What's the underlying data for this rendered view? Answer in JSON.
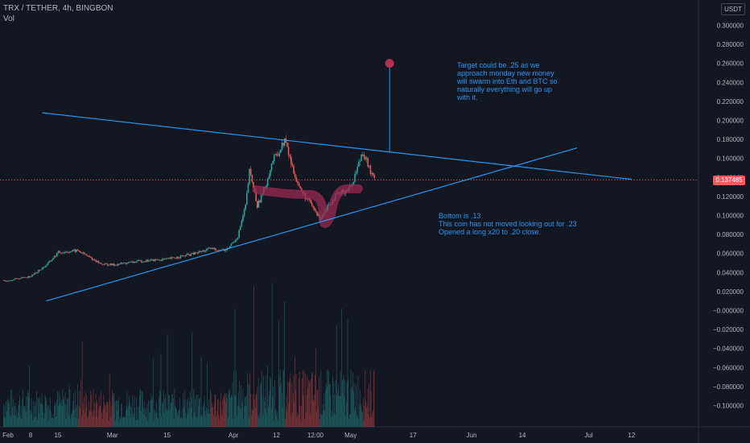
{
  "header": {
    "symbol_line": "TRX / TETHER, 4h, BINGBON",
    "volume_label": "Vol"
  },
  "unit_label": "USDT",
  "current_price_label": "0.137485",
  "annotations": {
    "target_note": [
      "Target could be .25 as we",
      "approach monday new money",
      "will swarm into Eth and BTC so",
      "naturally everything will go up",
      "with it."
    ],
    "bottom_note": [
      "Bottom is .13",
      "This coin has not moved looking out for .23",
      "Opened a long x20 to .20 close."
    ]
  },
  "chart_data": {
    "type": "candlestick",
    "title": "TRX / TETHER, 4h, BINGBON",
    "y_axis": {
      "unit": "USDT",
      "ylim": [
        -0.108,
        0.308
      ],
      "tick_labels": [
        "0.300000",
        "0.280000",
        "0.260000",
        "0.240000",
        "0.220000",
        "0.200000",
        "0.180000",
        "0.160000",
        "0.140000",
        "0.120000",
        "0.100000",
        "0.080000",
        "0.060000",
        "0.040000",
        "0.020000",
        "−0.000000",
        "−0.020000",
        "−0.040000",
        "−0.060000",
        "−0.080000",
        "−0.100000"
      ],
      "tick_values": [
        0.3,
        0.28,
        0.26,
        0.24,
        0.22,
        0.2,
        0.18,
        0.16,
        0.14,
        0.12,
        0.1,
        0.08,
        0.06,
        0.04,
        0.02,
        0.0,
        -0.02,
        -0.04,
        -0.06,
        -0.08,
        -0.1
      ]
    },
    "x_axis": {
      "tick_labels": [
        "Feb",
        "8",
        "15",
        "Mar",
        "15",
        "Apr",
        "12",
        "12:00",
        "May",
        "17",
        "Jun",
        "14",
        "Jul",
        "12"
      ]
    },
    "current_price": 0.137485,
    "price_path": [
      {
        "t": "Feb 1",
        "p": 0.031
      },
      {
        "t": "Feb 8",
        "p": 0.036
      },
      {
        "t": "Feb 12",
        "p": 0.048
      },
      {
        "t": "Feb 15",
        "p": 0.061
      },
      {
        "t": "Feb 20",
        "p": 0.063
      },
      {
        "t": "Feb 26",
        "p": 0.049
      },
      {
        "t": "Mar 1",
        "p": 0.048
      },
      {
        "t": "Mar 8",
        "p": 0.052
      },
      {
        "t": "Mar 15",
        "p": 0.054
      },
      {
        "t": "Mar 22",
        "p": 0.06
      },
      {
        "t": "Mar 26",
        "p": 0.065
      },
      {
        "t": "Mar 30",
        "p": 0.063
      },
      {
        "t": "Apr 2",
        "p": 0.078
      },
      {
        "t": "Apr 4",
        "p": 0.11
      },
      {
        "t": "Apr 5",
        "p": 0.146
      },
      {
        "t": "Apr 6",
        "p": 0.13
      },
      {
        "t": "Apr 7",
        "p": 0.11
      },
      {
        "t": "Apr 9",
        "p": 0.13
      },
      {
        "t": "Apr 11",
        "p": 0.158
      },
      {
        "t": "Apr 13",
        "p": 0.17
      },
      {
        "t": "Apr 14",
        "p": 0.18
      },
      {
        "t": "Apr 16",
        "p": 0.15
      },
      {
        "t": "Apr 18",
        "p": 0.127
      },
      {
        "t": "Apr 20",
        "p": 0.116
      },
      {
        "t": "Apr 23",
        "p": 0.097
      },
      {
        "t": "Apr 25",
        "p": 0.11
      },
      {
        "t": "Apr 27",
        "p": 0.12
      },
      {
        "t": "Apr 29",
        "p": 0.125
      },
      {
        "t": "May 1",
        "p": 0.13
      },
      {
        "t": "May 3",
        "p": 0.155
      },
      {
        "t": "May 4",
        "p": 0.168
      },
      {
        "t": "May 5",
        "p": 0.158
      },
      {
        "t": "May 6",
        "p": 0.145
      },
      {
        "t": "May 7",
        "p": 0.137485
      }
    ],
    "trendlines": [
      {
        "name": "resistance",
        "from": {
          "t": "Feb 11",
          "p": 0.208
        },
        "to": {
          "t": "Jul 12",
          "p": 0.138
        }
      },
      {
        "name": "support",
        "from": {
          "t": "Feb 12",
          "p": 0.01
        },
        "to": {
          "t": "Jun 28",
          "p": 0.171
        }
      }
    ],
    "target_marker": {
      "t": "May 11",
      "p": 0.26
    },
    "volume_shown": true,
    "grid": false,
    "colors": {
      "background": "#131722",
      "up": "#26a69a",
      "down": "#ef5350",
      "trendline": "#2196f3",
      "annotation_text": "#2196f3",
      "highlight": "#9c2a52",
      "marker": "#b0304f",
      "price_line": "#f05b5b"
    }
  }
}
